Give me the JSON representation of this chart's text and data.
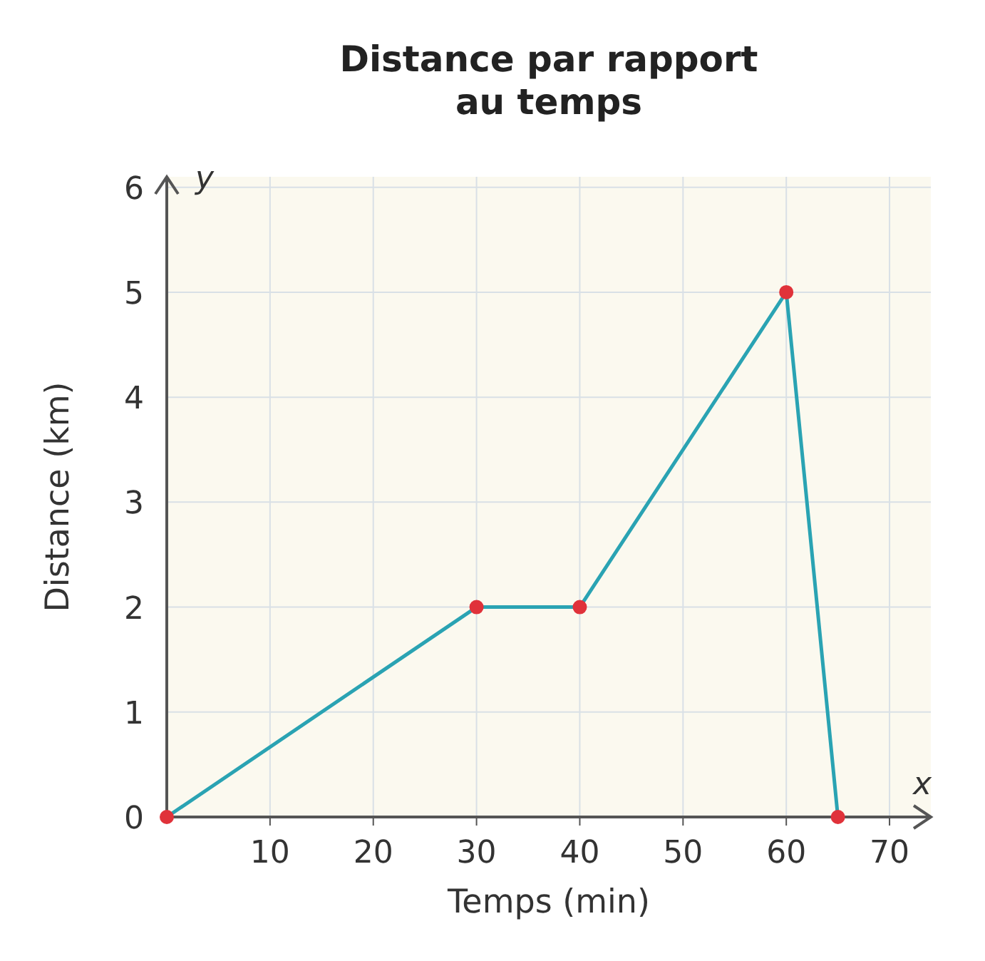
{
  "chart_data": {
    "type": "line",
    "title": "Distance par rapport au temps",
    "xlabel": "Temps (min)",
    "ylabel": "Distance (km)",
    "x": [
      0,
      30,
      40,
      60,
      65
    ],
    "series": [
      {
        "color": "#2aa3b3",
        "values": [
          0,
          2,
          2,
          5,
          0
        ]
      }
    ],
    "marker": "circle",
    "line_style": "solid",
    "grid": true,
    "xlim": [
      0,
      74
    ],
    "ylim": [
      0,
      6.1
    ],
    "xticks": [
      10,
      20,
      30,
      40,
      50,
      60,
      70
    ],
    "yticks": [
      0,
      1,
      2,
      3,
      4,
      5,
      6
    ],
    "annotations": [
      "x",
      "y"
    ]
  }
}
